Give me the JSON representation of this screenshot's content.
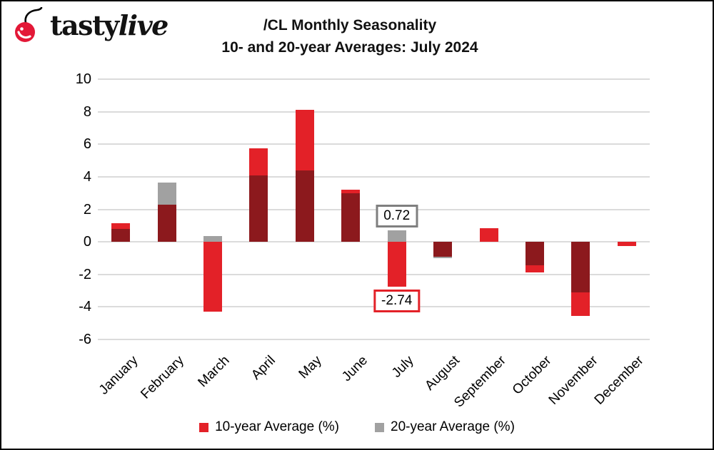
{
  "header": {
    "logo_tasty": "tasty",
    "logo_live": "live",
    "title_line1": "/CL Monthly Seasonality",
    "title_line2": "10- and 20-year Averages: July 2024"
  },
  "colors": {
    "red": "#e32128",
    "dark_red_overlap": "#8c191d",
    "gray": "#a1a1a1",
    "callout_gray_border": "#7f7f7f",
    "gridline": "#dbdbdb",
    "logo_cherry": "#e31837",
    "text": "#000000"
  },
  "chart_data": {
    "type": "bar",
    "title": "/CL Monthly Seasonality",
    "subtitle": "10- and 20-year Averages: July 2024",
    "categories": [
      "January",
      "February",
      "March",
      "April",
      "May",
      "June",
      "July",
      "August",
      "September",
      "October",
      "November",
      "December"
    ],
    "series": [
      {
        "name": "10-year Average (%)",
        "color_key": "red",
        "values": [
          1.15,
          2.3,
          -4.3,
          5.75,
          8.1,
          3.2,
          -2.74,
          -0.9,
          0.85,
          -1.9,
          -4.55,
          -0.25
        ]
      },
      {
        "name": "20-year Average (%)",
        "color_key": "gray",
        "values": [
          0.8,
          3.65,
          0.35,
          4.1,
          4.4,
          3.0,
          0.72,
          -1.0,
          0.0,
          -1.45,
          -3.1,
          0.0
        ]
      }
    ],
    "overlap_note": "bars overlap; overlapping region renders dark red",
    "ylim": [
      -6,
      10
    ],
    "yticks": [
      10,
      8,
      6,
      4,
      2,
      0,
      -2,
      -4,
      -6
    ],
    "grid": true,
    "legend_position": "bottom",
    "annotations": [
      {
        "month": "July",
        "month_index": 6,
        "series": "20-year Average (%)",
        "series_index": 1,
        "value": 0.72,
        "label": "0.72"
      },
      {
        "month": "July",
        "month_index": 6,
        "series": "10-year Average (%)",
        "series_index": 0,
        "value": -2.74,
        "label": "-2.74"
      }
    ]
  }
}
